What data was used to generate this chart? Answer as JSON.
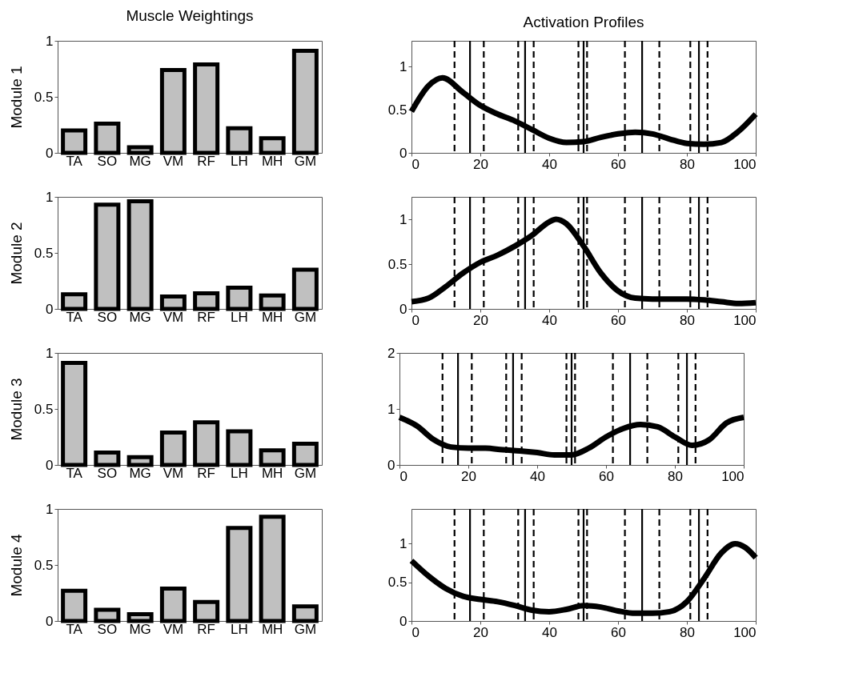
{
  "chart_data": [
    {
      "type": "bar",
      "title": "Muscle Weightings",
      "ylabel": "Module 1",
      "categories": [
        "TA",
        "SO",
        "MG",
        "VM",
        "RF",
        "LH",
        "MH",
        "GM"
      ],
      "values": [
        0.2,
        0.26,
        0.05,
        0.74,
        0.79,
        0.22,
        0.13,
        0.91
      ],
      "color": "#c0c0c0",
      "ylim": [
        0,
        1
      ],
      "yticks": [
        0,
        0.5,
        1
      ]
    },
    {
      "type": "line",
      "title": "Activation Profiles",
      "x": [
        0,
        5,
        9,
        15,
        20,
        25,
        30,
        35,
        40,
        45,
        50,
        55,
        60,
        65,
        70,
        75,
        80,
        85,
        90,
        95,
        100
      ],
      "series": [
        {
          "color": "#000000",
          "values": [
            0.48,
            0.78,
            0.87,
            0.7,
            0.55,
            0.45,
            0.37,
            0.27,
            0.17,
            0.12,
            0.13,
            0.18,
            0.22,
            0.24,
            0.22,
            0.16,
            0.11,
            0.1,
            0.12,
            0.25,
            0.45
          ]
        }
      ],
      "xlim": [
        0,
        100
      ],
      "xticks": [
        0,
        20,
        40,
        60,
        80,
        100
      ],
      "ylim": [
        0,
        1.3
      ],
      "yticks": [
        0,
        0.5,
        1
      ],
      "ref_lines": [
        {
          "axis": "x",
          "value": 12.5,
          "line_style": "dashed",
          "color": "#000000"
        },
        {
          "axis": "x",
          "value": 17,
          "line_style": "solid",
          "color": "#000000"
        },
        {
          "axis": "x",
          "value": 21,
          "line_style": "dashed",
          "color": "#000000"
        },
        {
          "axis": "x",
          "value": 31,
          "line_style": "dashed",
          "color": "#000000"
        },
        {
          "axis": "x",
          "value": 33,
          "line_style": "solid",
          "color": "#000000"
        },
        {
          "axis": "x",
          "value": 35.5,
          "line_style": "dashed",
          "color": "#000000"
        },
        {
          "axis": "x",
          "value": 48.5,
          "line_style": "dashed",
          "color": "#000000"
        },
        {
          "axis": "x",
          "value": 50,
          "line_style": "solid",
          "color": "#000000"
        },
        {
          "axis": "x",
          "value": 51,
          "line_style": "dashed",
          "color": "#000000"
        },
        {
          "axis": "x",
          "value": 62,
          "line_style": "dashed",
          "color": "#000000"
        },
        {
          "axis": "x",
          "value": 67,
          "line_style": "solid",
          "color": "#000000"
        },
        {
          "axis": "x",
          "value": 72,
          "line_style": "dashed",
          "color": "#000000"
        },
        {
          "axis": "x",
          "value": 81,
          "line_style": "dashed",
          "color": "#000000"
        },
        {
          "axis": "x",
          "value": 83.5,
          "line_style": "solid",
          "color": "#000000"
        },
        {
          "axis": "x",
          "value": 86,
          "line_style": "dashed",
          "color": "#000000"
        }
      ]
    },
    {
      "type": "bar",
      "ylabel": "Module 2",
      "categories": [
        "TA",
        "SO",
        "MG",
        "VM",
        "RF",
        "LH",
        "MH",
        "GM"
      ],
      "values": [
        0.13,
        0.93,
        0.96,
        0.11,
        0.14,
        0.19,
        0.12,
        0.35
      ],
      "color": "#c0c0c0",
      "ylim": [
        0,
        1
      ],
      "yticks": [
        0,
        0.5,
        1
      ]
    },
    {
      "type": "line",
      "x": [
        0,
        5,
        10,
        15,
        20,
        25,
        30,
        35,
        40,
        42,
        45,
        50,
        55,
        60,
        65,
        70,
        75,
        80,
        85,
        90,
        95,
        100
      ],
      "series": [
        {
          "color": "#000000",
          "values": [
            0.08,
            0.12,
            0.25,
            0.4,
            0.52,
            0.6,
            0.7,
            0.82,
            0.97,
            1.0,
            0.95,
            0.7,
            0.4,
            0.2,
            0.12,
            0.11,
            0.11,
            0.11,
            0.1,
            0.08,
            0.06,
            0.07
          ]
        }
      ],
      "xlim": [
        0,
        100
      ],
      "xticks": [
        0,
        20,
        40,
        60,
        80,
        100
      ],
      "ylim": [
        0,
        1.25
      ],
      "yticks": [
        0,
        0.5,
        1
      ],
      "ref_lines": [
        {
          "axis": "x",
          "value": 12.5,
          "line_style": "dashed",
          "color": "#000000"
        },
        {
          "axis": "x",
          "value": 17,
          "line_style": "solid",
          "color": "#000000"
        },
        {
          "axis": "x",
          "value": 21,
          "line_style": "dashed",
          "color": "#000000"
        },
        {
          "axis": "x",
          "value": 31,
          "line_style": "dashed",
          "color": "#000000"
        },
        {
          "axis": "x",
          "value": 33,
          "line_style": "solid",
          "color": "#000000"
        },
        {
          "axis": "x",
          "value": 35.5,
          "line_style": "dashed",
          "color": "#000000"
        },
        {
          "axis": "x",
          "value": 48.5,
          "line_style": "dashed",
          "color": "#000000"
        },
        {
          "axis": "x",
          "value": 50,
          "line_style": "solid",
          "color": "#000000"
        },
        {
          "axis": "x",
          "value": 51,
          "line_style": "dashed",
          "color": "#000000"
        },
        {
          "axis": "x",
          "value": 62,
          "line_style": "dashed",
          "color": "#000000"
        },
        {
          "axis": "x",
          "value": 67,
          "line_style": "solid",
          "color": "#000000"
        },
        {
          "axis": "x",
          "value": 72,
          "line_style": "dashed",
          "color": "#000000"
        },
        {
          "axis": "x",
          "value": 81,
          "line_style": "dashed",
          "color": "#000000"
        },
        {
          "axis": "x",
          "value": 83.5,
          "line_style": "solid",
          "color": "#000000"
        },
        {
          "axis": "x",
          "value": 86,
          "line_style": "dashed",
          "color": "#000000"
        }
      ]
    },
    {
      "type": "bar",
      "ylabel": "Module 3",
      "categories": [
        "TA",
        "SO",
        "MG",
        "VM",
        "RF",
        "LH",
        "MH",
        "GM"
      ],
      "values": [
        0.91,
        0.11,
        0.07,
        0.29,
        0.38,
        0.3,
        0.13,
        0.19
      ],
      "color": "#c0c0c0",
      "ylim": [
        0,
        1
      ],
      "yticks": [
        0,
        0.5,
        1
      ]
    },
    {
      "type": "line",
      "x": [
        0,
        5,
        10,
        15,
        20,
        25,
        30,
        35,
        40,
        45,
        50,
        55,
        60,
        65,
        70,
        75,
        80,
        85,
        90,
        95,
        100
      ],
      "series": [
        {
          "color": "#000000",
          "values": [
            0.85,
            0.7,
            0.45,
            0.32,
            0.3,
            0.3,
            0.27,
            0.25,
            0.22,
            0.18,
            0.18,
            0.3,
            0.5,
            0.65,
            0.72,
            0.68,
            0.5,
            0.35,
            0.45,
            0.75,
            0.85
          ]
        }
      ],
      "xlim": [
        0,
        100
      ],
      "xticks": [
        0,
        20,
        40,
        60,
        80,
        100
      ],
      "ylim": [
        0,
        2
      ],
      "yticks": [
        0,
        1,
        2
      ],
      "ref_lines": [
        {
          "axis": "x",
          "value": 12.5,
          "line_style": "dashed",
          "color": "#000000"
        },
        {
          "axis": "x",
          "value": 17,
          "line_style": "solid",
          "color": "#000000"
        },
        {
          "axis": "x",
          "value": 21,
          "line_style": "dashed",
          "color": "#000000"
        },
        {
          "axis": "x",
          "value": 31,
          "line_style": "dashed",
          "color": "#000000"
        },
        {
          "axis": "x",
          "value": 33,
          "line_style": "solid",
          "color": "#000000"
        },
        {
          "axis": "x",
          "value": 35.5,
          "line_style": "dashed",
          "color": "#000000"
        },
        {
          "axis": "x",
          "value": 48.5,
          "line_style": "dashed",
          "color": "#000000"
        },
        {
          "axis": "x",
          "value": 50,
          "line_style": "solid",
          "color": "#000000"
        },
        {
          "axis": "x",
          "value": 51,
          "line_style": "dashed",
          "color": "#000000"
        },
        {
          "axis": "x",
          "value": 62,
          "line_style": "dashed",
          "color": "#000000"
        },
        {
          "axis": "x",
          "value": 67,
          "line_style": "solid",
          "color": "#000000"
        },
        {
          "axis": "x",
          "value": 72,
          "line_style": "dashed",
          "color": "#000000"
        },
        {
          "axis": "x",
          "value": 81,
          "line_style": "dashed",
          "color": "#000000"
        },
        {
          "axis": "x",
          "value": 83.5,
          "line_style": "solid",
          "color": "#000000"
        },
        {
          "axis": "x",
          "value": 86,
          "line_style": "dashed",
          "color": "#000000"
        }
      ]
    },
    {
      "type": "bar",
      "ylabel": "Module 4",
      "categories": [
        "TA",
        "SO",
        "MG",
        "VM",
        "RF",
        "LH",
        "MH",
        "GM"
      ],
      "values": [
        0.27,
        0.1,
        0.06,
        0.29,
        0.17,
        0.83,
        0.93,
        0.13
      ],
      "color": "#c0c0c0",
      "ylim": [
        0,
        1
      ],
      "yticks": [
        0,
        0.5,
        1
      ]
    },
    {
      "type": "line",
      "x": [
        0,
        5,
        10,
        15,
        20,
        25,
        30,
        35,
        40,
        45,
        50,
        55,
        60,
        65,
        70,
        75,
        80,
        85,
        90,
        94,
        97,
        100
      ],
      "series": [
        {
          "color": "#000000",
          "values": [
            0.78,
            0.58,
            0.42,
            0.32,
            0.28,
            0.25,
            0.2,
            0.14,
            0.12,
            0.15,
            0.2,
            0.18,
            0.13,
            0.1,
            0.1,
            0.12,
            0.25,
            0.55,
            0.88,
            1.0,
            0.95,
            0.82
          ]
        }
      ],
      "xlim": [
        0,
        100
      ],
      "xticks": [
        0,
        20,
        40,
        60,
        80,
        100
      ],
      "ylim": [
        0,
        1.45
      ],
      "yticks": [
        0,
        0.5,
        1
      ],
      "ref_lines": [
        {
          "axis": "x",
          "value": 12.5,
          "line_style": "dashed",
          "color": "#000000"
        },
        {
          "axis": "x",
          "value": 17,
          "line_style": "solid",
          "color": "#000000"
        },
        {
          "axis": "x",
          "value": 21,
          "line_style": "dashed",
          "color": "#000000"
        },
        {
          "axis": "x",
          "value": 31,
          "line_style": "dashed",
          "color": "#000000"
        },
        {
          "axis": "x",
          "value": 33,
          "line_style": "solid",
          "color": "#000000"
        },
        {
          "axis": "x",
          "value": 35.5,
          "line_style": "dashed",
          "color": "#000000"
        },
        {
          "axis": "x",
          "value": 48.5,
          "line_style": "dashed",
          "color": "#000000"
        },
        {
          "axis": "x",
          "value": 50,
          "line_style": "solid",
          "color": "#000000"
        },
        {
          "axis": "x",
          "value": 51,
          "line_style": "dashed",
          "color": "#000000"
        },
        {
          "axis": "x",
          "value": 62,
          "line_style": "dashed",
          "color": "#000000"
        },
        {
          "axis": "x",
          "value": 67,
          "line_style": "solid",
          "color": "#000000"
        },
        {
          "axis": "x",
          "value": 72,
          "line_style": "dashed",
          "color": "#000000"
        },
        {
          "axis": "x",
          "value": 81,
          "line_style": "dashed",
          "color": "#000000"
        },
        {
          "axis": "x",
          "value": 83.5,
          "line_style": "solid",
          "color": "#000000"
        },
        {
          "axis": "x",
          "value": 86,
          "line_style": "dashed",
          "color": "#000000"
        }
      ]
    }
  ]
}
